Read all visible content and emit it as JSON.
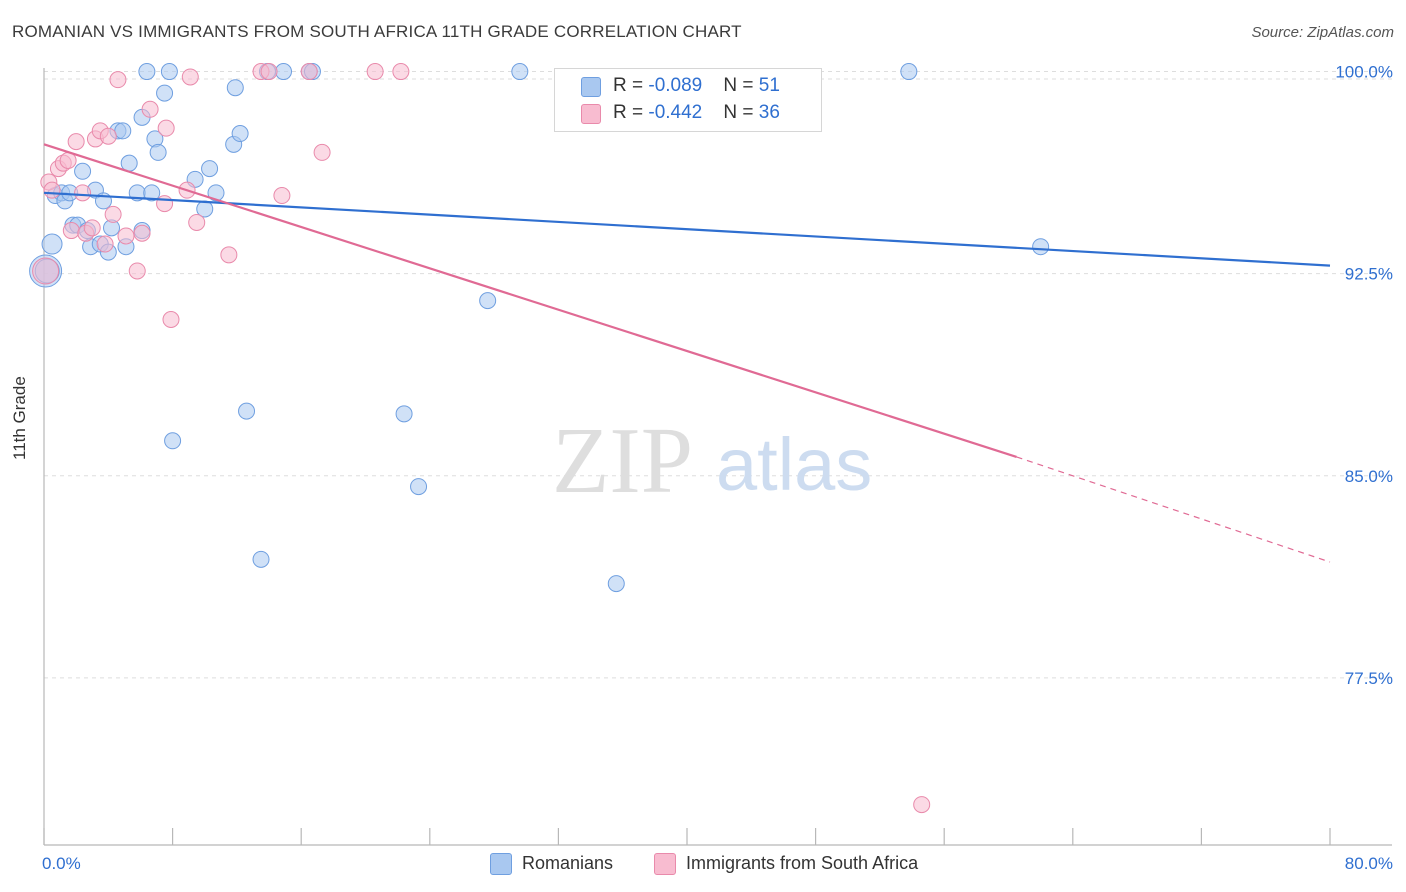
{
  "title": "ROMANIAN VS IMMIGRANTS FROM SOUTH AFRICA 11TH GRADE CORRELATION CHART",
  "source": "Source: ZipAtlas.com",
  "watermark": {
    "zip": "ZIP",
    "atlas": "atlas"
  },
  "legend": {
    "rows": [
      {
        "r_label": "R = ",
        "r_value": "-0.089",
        "n_label": "N = ",
        "n_value": "51"
      },
      {
        "r_label": "R = ",
        "r_value": "-0.442",
        "n_label": "N = ",
        "n_value": "36"
      }
    ]
  },
  "bottom_legend": {
    "romanians": "Romanians",
    "immigrants": "Immigrants from South Africa"
  },
  "colors": {
    "blue_fill": "#a9c8f0",
    "blue_stroke": "#6f9fe0",
    "blue_line": "#2f6fd0",
    "pink_fill": "#f8bcd0",
    "pink_stroke": "#e98aab",
    "pink_line": "#e06a94",
    "grid": "#dddddd",
    "label": "#2f6fd0"
  },
  "chart_data": {
    "type": "scatter",
    "title": "ROMANIAN VS IMMIGRANTS FROM SOUTH AFRICA 11TH GRADE CORRELATION CHART",
    "xlabel": "",
    "ylabel": "11th Grade",
    "xlim": [
      0,
      80
    ],
    "ylim": [
      71.3,
      100.8
    ],
    "x_tick_labels": [
      "0.0%",
      "80.0%"
    ],
    "y_ticks": [
      {
        "value": 100.0,
        "label": "100.0%"
      },
      {
        "value": 92.5,
        "label": "92.5%"
      },
      {
        "value": 85.0,
        "label": "85.0%"
      },
      {
        "value": 77.5,
        "label": "77.5%"
      }
    ],
    "series": [
      {
        "name": "Romanians",
        "R": -0.089,
        "N": 51,
        "trend": {
          "x0": 0.0,
          "y0": 95.5,
          "x1": 80.0,
          "y1": 92.8
        },
        "points": [
          {
            "x": 0.1,
            "y": 92.6,
            "s": 16
          },
          {
            "x": 0.2,
            "y": 92.6,
            "s": 12
          },
          {
            "x": 0.5,
            "y": 93.6,
            "s": 10
          },
          {
            "x": 0.7,
            "y": 95.4,
            "s": 8
          },
          {
            "x": 1.1,
            "y": 95.5,
            "s": 8
          },
          {
            "x": 1.3,
            "y": 95.2,
            "s": 8
          },
          {
            "x": 1.6,
            "y": 95.5,
            "s": 8
          },
          {
            "x": 1.8,
            "y": 94.3,
            "s": 8
          },
          {
            "x": 2.1,
            "y": 94.3,
            "s": 8
          },
          {
            "x": 2.4,
            "y": 96.3,
            "s": 8
          },
          {
            "x": 2.7,
            "y": 94.1,
            "s": 8
          },
          {
            "x": 2.9,
            "y": 93.5,
            "s": 8
          },
          {
            "x": 3.2,
            "y": 95.6,
            "s": 8
          },
          {
            "x": 3.5,
            "y": 93.6,
            "s": 8
          },
          {
            "x": 3.7,
            "y": 95.2,
            "s": 8
          },
          {
            "x": 4.0,
            "y": 93.3,
            "s": 8
          },
          {
            "x": 4.2,
            "y": 94.2,
            "s": 8
          },
          {
            "x": 4.6,
            "y": 97.8,
            "s": 8
          },
          {
            "x": 4.9,
            "y": 97.8,
            "s": 8
          },
          {
            "x": 5.1,
            "y": 93.5,
            "s": 8
          },
          {
            "x": 5.3,
            "y": 96.6,
            "s": 8
          },
          {
            "x": 5.8,
            "y": 95.5,
            "s": 8
          },
          {
            "x": 6.1,
            "y": 94.1,
            "s": 8
          },
          {
            "x": 6.1,
            "y": 98.3,
            "s": 8
          },
          {
            "x": 6.4,
            "y": 100.0,
            "s": 8
          },
          {
            "x": 6.7,
            "y": 95.5,
            "s": 8
          },
          {
            "x": 6.9,
            "y": 97.5,
            "s": 8
          },
          {
            "x": 7.1,
            "y": 97.0,
            "s": 8
          },
          {
            "x": 7.5,
            "y": 99.2,
            "s": 8
          },
          {
            "x": 7.8,
            "y": 100.0,
            "s": 8
          },
          {
            "x": 8.0,
            "y": 86.3,
            "s": 8
          },
          {
            "x": 9.4,
            "y": 96.0,
            "s": 8
          },
          {
            "x": 10.0,
            "y": 94.9,
            "s": 8
          },
          {
            "x": 10.3,
            "y": 96.4,
            "s": 8
          },
          {
            "x": 10.7,
            "y": 95.5,
            "s": 8
          },
          {
            "x": 11.8,
            "y": 97.3,
            "s": 8
          },
          {
            "x": 11.9,
            "y": 99.4,
            "s": 8
          },
          {
            "x": 12.2,
            "y": 97.7,
            "s": 8
          },
          {
            "x": 12.6,
            "y": 87.4,
            "s": 8
          },
          {
            "x": 13.5,
            "y": 81.9,
            "s": 8
          },
          {
            "x": 13.9,
            "y": 100.0,
            "s": 8
          },
          {
            "x": 14.9,
            "y": 100.0,
            "s": 8
          },
          {
            "x": 16.5,
            "y": 100.0,
            "s": 8
          },
          {
            "x": 16.7,
            "y": 100.0,
            "s": 8
          },
          {
            "x": 22.4,
            "y": 87.3,
            "s": 8
          },
          {
            "x": 23.3,
            "y": 84.6,
            "s": 8
          },
          {
            "x": 27.6,
            "y": 91.5,
            "s": 8
          },
          {
            "x": 29.6,
            "y": 100.0,
            "s": 8
          },
          {
            "x": 35.6,
            "y": 81.0,
            "s": 8
          },
          {
            "x": 53.8,
            "y": 100.0,
            "s": 8
          },
          {
            "x": 62.0,
            "y": 93.5,
            "s": 8
          }
        ]
      },
      {
        "name": "Immigrants from South Africa",
        "R": -0.442,
        "N": 36,
        "trend": {
          "x0": 0.0,
          "y0": 97.3,
          "x1": 60.5,
          "y1": 85.7,
          "dash_x1": 80.0,
          "dash_y1": 81.8
        },
        "points": [
          {
            "x": 0.1,
            "y": 92.6,
            "s": 13
          },
          {
            "x": 0.3,
            "y": 95.9,
            "s": 8
          },
          {
            "x": 0.5,
            "y": 95.6,
            "s": 8
          },
          {
            "x": 0.9,
            "y": 96.4,
            "s": 8
          },
          {
            "x": 1.2,
            "y": 96.6,
            "s": 8
          },
          {
            "x": 1.5,
            "y": 96.7,
            "s": 8
          },
          {
            "x": 1.7,
            "y": 94.1,
            "s": 8
          },
          {
            "x": 2.0,
            "y": 97.4,
            "s": 8
          },
          {
            "x": 2.4,
            "y": 95.5,
            "s": 8
          },
          {
            "x": 2.6,
            "y": 94.0,
            "s": 8
          },
          {
            "x": 3.0,
            "y": 94.2,
            "s": 8
          },
          {
            "x": 3.2,
            "y": 97.5,
            "s": 8
          },
          {
            "x": 3.5,
            "y": 97.8,
            "s": 8
          },
          {
            "x": 3.8,
            "y": 93.6,
            "s": 8
          },
          {
            "x": 4.0,
            "y": 97.6,
            "s": 8
          },
          {
            "x": 4.3,
            "y": 94.7,
            "s": 8
          },
          {
            "x": 4.6,
            "y": 99.7,
            "s": 8
          },
          {
            "x": 5.1,
            "y": 93.9,
            "s": 8
          },
          {
            "x": 5.8,
            "y": 92.6,
            "s": 8
          },
          {
            "x": 6.1,
            "y": 94.0,
            "s": 8
          },
          {
            "x": 6.6,
            "y": 98.6,
            "s": 8
          },
          {
            "x": 7.5,
            "y": 95.1,
            "s": 8
          },
          {
            "x": 7.6,
            "y": 97.9,
            "s": 8
          },
          {
            "x": 7.9,
            "y": 90.8,
            "s": 8
          },
          {
            "x": 8.9,
            "y": 95.6,
            "s": 8
          },
          {
            "x": 9.1,
            "y": 99.8,
            "s": 8
          },
          {
            "x": 9.5,
            "y": 94.4,
            "s": 8
          },
          {
            "x": 11.5,
            "y": 93.2,
            "s": 8
          },
          {
            "x": 13.5,
            "y": 100.0,
            "s": 8
          },
          {
            "x": 14.0,
            "y": 100.0,
            "s": 8
          },
          {
            "x": 14.8,
            "y": 95.4,
            "s": 8
          },
          {
            "x": 16.5,
            "y": 100.0,
            "s": 8
          },
          {
            "x": 17.3,
            "y": 97.0,
            "s": 8
          },
          {
            "x": 20.6,
            "y": 100.0,
            "s": 8
          },
          {
            "x": 22.2,
            "y": 100.0,
            "s": 8
          },
          {
            "x": 54.6,
            "y": 72.8,
            "s": 8
          }
        ]
      }
    ]
  }
}
